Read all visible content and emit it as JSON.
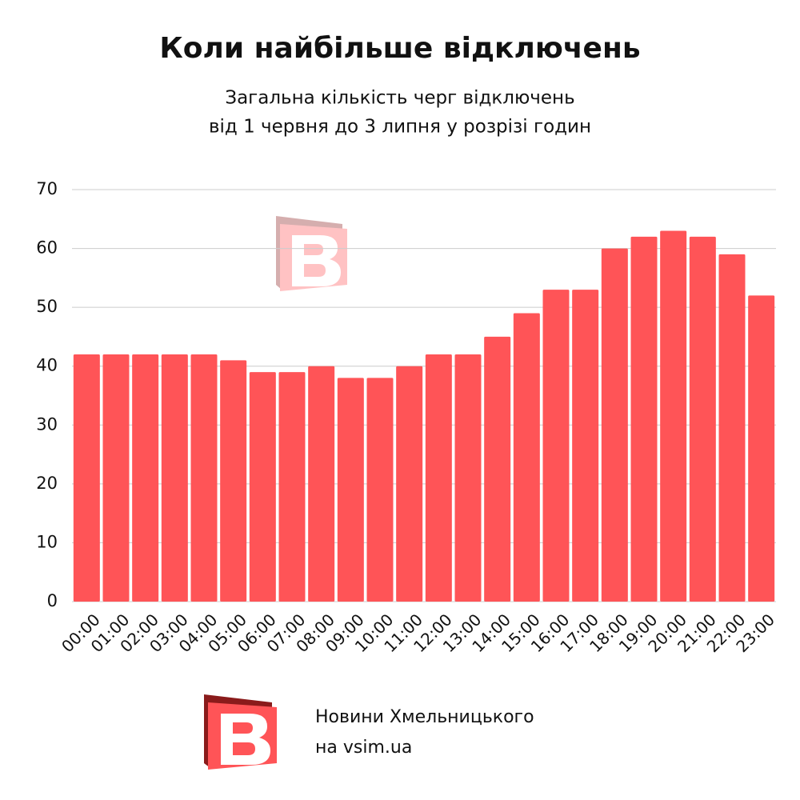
{
  "chart_data": {
    "type": "bar",
    "title": "Коли найбільше відключень",
    "subtitle": [
      "Загальна кількість черг відключень",
      "від 1 червня до 3 липня у розрізі годин"
    ],
    "categories": [
      "00:00",
      "01:00",
      "02:00",
      "03:00",
      "04:00",
      "05:00",
      "06:00",
      "07:00",
      "08:00",
      "09:00",
      "10:00",
      "11:00",
      "12:00",
      "13:00",
      "14:00",
      "15:00",
      "16:00",
      "17:00",
      "18:00",
      "19:00",
      "20:00",
      "21:00",
      "22:00",
      "23:00"
    ],
    "values": [
      42,
      42,
      42,
      42,
      42,
      41,
      39,
      39,
      40,
      38,
      38,
      40,
      42,
      42,
      45,
      49,
      53,
      53,
      60,
      62,
      63,
      62,
      59,
      52
    ],
    "color": "#ff5457",
    "ylim": [
      0,
      70
    ],
    "yticks": [
      0,
      10,
      20,
      30,
      40,
      50,
      60,
      70
    ],
    "grid": true
  },
  "footer": [
    "Новини Хмельницького",
    "на vsim.ua"
  ]
}
